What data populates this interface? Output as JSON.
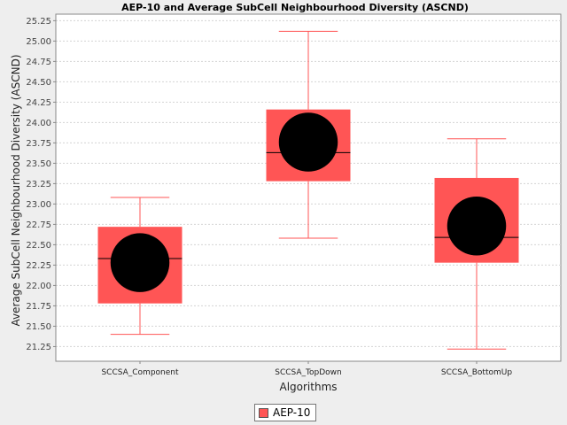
{
  "chart_data": {
    "type": "box",
    "title": "AEP-10 and Average SubCell Neighbourhood Diversity (ASCND)",
    "xlabel": "Algorithms",
    "ylabel": "Average SubCell Neighbourhood Diversity (ASCND)",
    "ylim": [
      21.07,
      25.33
    ],
    "yticks": [
      "21.25",
      "21.50",
      "21.75",
      "22.00",
      "22.25",
      "22.50",
      "22.75",
      "23.00",
      "23.25",
      "23.50",
      "23.75",
      "24.00",
      "24.25",
      "24.50",
      "24.75",
      "25.00",
      "25.25"
    ],
    "grid": true,
    "legend_position": "bottom",
    "series": [
      {
        "name": "AEP-10",
        "color": "#ff5555",
        "boxes": [
          {
            "category": "SCCSA_Component",
            "min": 21.4,
            "q1": 21.78,
            "median": 22.33,
            "q3": 22.72,
            "max": 23.08,
            "mean": 22.28
          },
          {
            "category": "SCCSA_TopDown",
            "min": 22.58,
            "q1": 23.28,
            "median": 23.63,
            "q3": 24.16,
            "max": 25.12,
            "mean": 23.76
          },
          {
            "category": "SCCSA_BottomUp",
            "min": 21.22,
            "q1": 22.28,
            "median": 22.59,
            "q3": 23.32,
            "max": 23.8,
            "mean": 22.73
          }
        ]
      }
    ]
  }
}
